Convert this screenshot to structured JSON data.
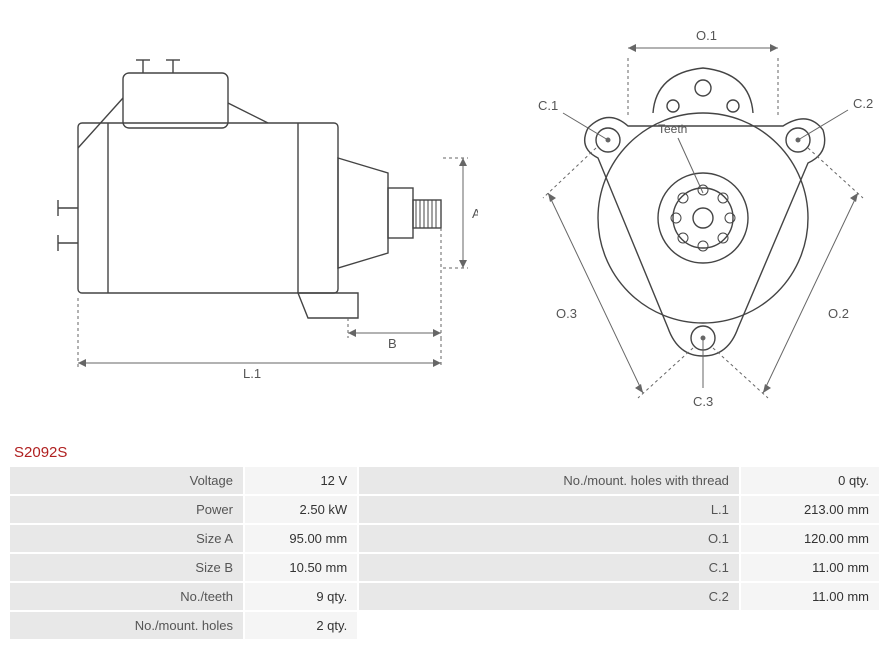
{
  "part_number": "S2092S",
  "side_view": {
    "labels": {
      "A": "A",
      "B": "B",
      "L1": "L.1"
    },
    "stroke": "#444444",
    "dim_color": "#666666"
  },
  "front_view": {
    "labels": {
      "O1": "O.1",
      "O2": "O.2",
      "O3": "O.3",
      "C1": "C.1",
      "C2": "C.2",
      "C3": "C.3",
      "Teeth": "Teeth"
    },
    "stroke": "#444444",
    "dim_color": "#666666"
  },
  "specs_left": [
    {
      "label": "Voltage",
      "value": "12 V"
    },
    {
      "label": "Power",
      "value": "2.50 kW"
    },
    {
      "label": "Size A",
      "value": "95.00 mm"
    },
    {
      "label": "Size B",
      "value": "10.50 mm"
    },
    {
      "label": "No./teeth",
      "value": "9 qty."
    },
    {
      "label": "No./mount. holes",
      "value": "2 qty."
    }
  ],
  "specs_right": [
    {
      "label": "No./mount. holes with thread",
      "value": "0 qty."
    },
    {
      "label": "L.1",
      "value": "213.00 mm"
    },
    {
      "label": "O.1",
      "value": "120.00 mm"
    },
    {
      "label": "C.1",
      "value": "11.00 mm"
    },
    {
      "label": "C.2",
      "value": "11.00 mm"
    }
  ]
}
